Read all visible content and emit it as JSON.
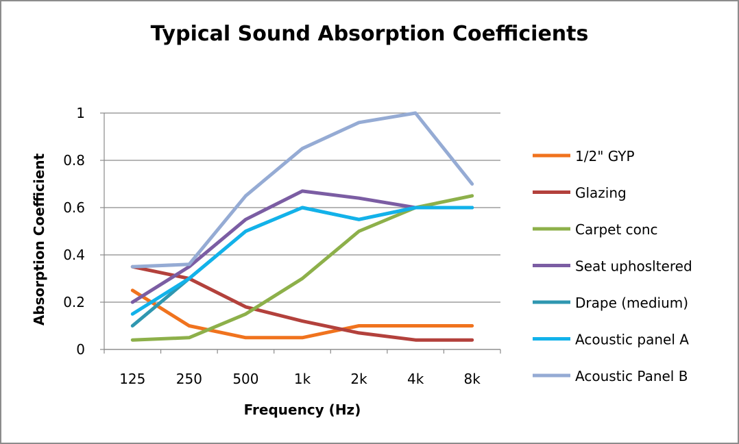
{
  "chart_data": {
    "type": "line",
    "title": "Typical Sound Absorption Coefficients",
    "xlabel": "Frequency (Hz)",
    "ylabel": "Absorption Coefficient",
    "categories": [
      "125",
      "250",
      "500",
      "1k",
      "2k",
      "4k",
      "8k"
    ],
    "ylim": [
      0,
      1
    ],
    "yticks": [
      "0",
      "0.2",
      "0.4",
      "0.6",
      "0.8",
      "1"
    ],
    "grid": true,
    "legend": "right",
    "series": [
      {
        "name": "1/2\" GYP",
        "color": "#f0731e",
        "values": [
          0.25,
          0.1,
          0.05,
          0.05,
          0.1,
          0.1,
          0.1
        ]
      },
      {
        "name": "Glazing",
        "color": "#b3413c",
        "values": [
          0.35,
          0.3,
          0.18,
          0.12,
          0.07,
          0.04,
          0.04
        ]
      },
      {
        "name": "Carpet conc",
        "color": "#8db04a",
        "values": [
          0.04,
          0.05,
          0.15,
          0.3,
          0.5,
          0.6,
          0.65
        ]
      },
      {
        "name": "Seat uphosltered",
        "color": "#7b5da3",
        "values": [
          0.2,
          0.35,
          0.55,
          0.67,
          0.64,
          0.6,
          0.6
        ]
      },
      {
        "name": "Drape (medium)",
        "color": "#2f97b0",
        "values": [
          0.1,
          0.3,
          0.5,
          0.6,
          0.55,
          0.6,
          0.6
        ]
      },
      {
        "name": "Acoustic panel A",
        "color": "#12b2ea",
        "values": [
          0.15,
          0.3,
          0.5,
          0.6,
          0.55,
          0.6,
          0.6
        ]
      },
      {
        "name": "Acoustic Panel B",
        "color": "#95abd4",
        "values": [
          0.35,
          0.36,
          0.65,
          0.85,
          0.96,
          1.0,
          0.7
        ]
      }
    ]
  }
}
